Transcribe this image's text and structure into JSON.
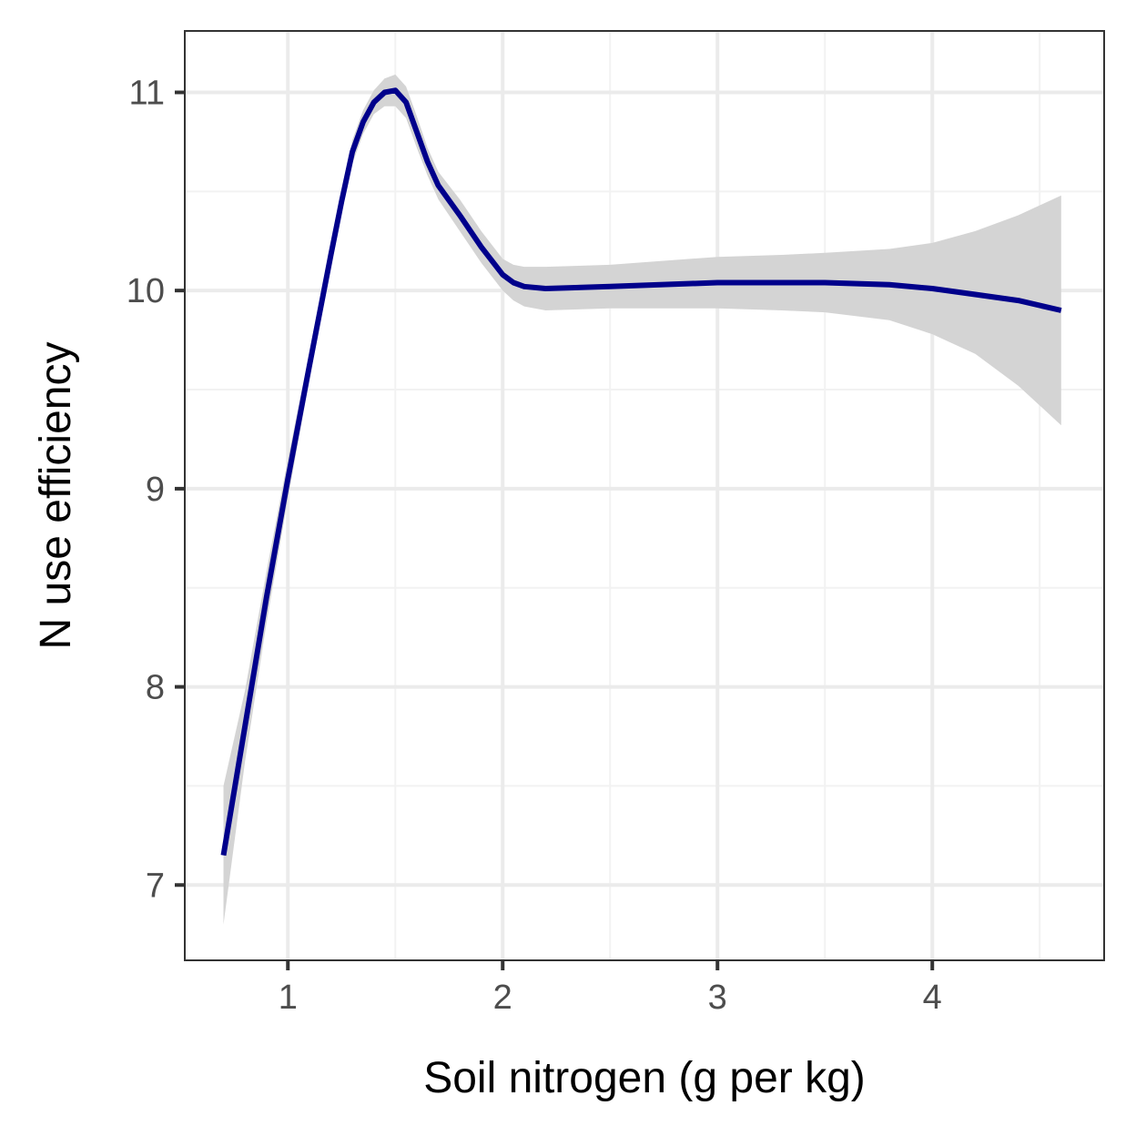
{
  "chart_data": {
    "type": "line",
    "title": "",
    "xlabel": "Soil nitrogen (g per kg)",
    "ylabel": "N use efficiency",
    "xlim": [
      0.52,
      4.8
    ],
    "ylim": [
      6.62,
      11.31
    ],
    "x_ticks": [
      1,
      2,
      3,
      4
    ],
    "x_tick_labels": [
      "1",
      "2",
      "3",
      "4"
    ],
    "y_ticks": [
      7,
      8,
      9,
      10,
      11
    ],
    "y_tick_labels": [
      "7",
      "8",
      "9",
      "10",
      "11"
    ],
    "grid": true,
    "legend": "none",
    "colors": {
      "line": "#00008B",
      "band": "#d4d4d4",
      "panel_border": "#333333",
      "grid_major": "#ebebeb",
      "grid_minor": "#f2f2f2"
    },
    "series": [
      {
        "x": [
          0.7,
          0.8,
          0.9,
          1.0,
          1.1,
          1.2,
          1.25,
          1.3,
          1.35,
          1.4,
          1.45,
          1.5,
          1.55,
          1.6,
          1.65,
          1.7,
          1.8,
          1.9,
          2.0,
          2.05,
          2.1,
          2.2,
          2.5,
          3.0,
          3.3,
          3.5,
          3.8,
          4.0,
          4.2,
          4.4,
          4.6
        ],
        "y": [
          7.15,
          7.8,
          8.45,
          9.05,
          9.62,
          10.18,
          10.45,
          10.7,
          10.85,
          10.95,
          11.0,
          11.01,
          10.95,
          10.8,
          10.65,
          10.53,
          10.38,
          10.22,
          10.08,
          10.04,
          10.02,
          10.01,
          10.02,
          10.04,
          10.04,
          10.04,
          10.03,
          10.01,
          9.98,
          9.95,
          9.9
        ],
        "lower": [
          6.8,
          7.62,
          8.32,
          8.95,
          9.55,
          10.12,
          10.4,
          10.64,
          10.79,
          10.89,
          10.93,
          10.93,
          10.87,
          10.72,
          10.58,
          10.46,
          10.3,
          10.14,
          10.0,
          9.95,
          9.92,
          9.9,
          9.91,
          9.91,
          9.9,
          9.89,
          9.85,
          9.78,
          9.68,
          9.52,
          9.32
        ],
        "upper": [
          7.5,
          7.98,
          8.58,
          9.15,
          9.69,
          10.24,
          10.5,
          10.76,
          10.91,
          11.01,
          11.07,
          11.09,
          11.03,
          10.88,
          10.72,
          10.6,
          10.46,
          10.3,
          10.16,
          10.13,
          10.12,
          10.12,
          10.13,
          10.17,
          10.18,
          10.19,
          10.21,
          10.24,
          10.3,
          10.38,
          10.48
        ]
      }
    ]
  }
}
